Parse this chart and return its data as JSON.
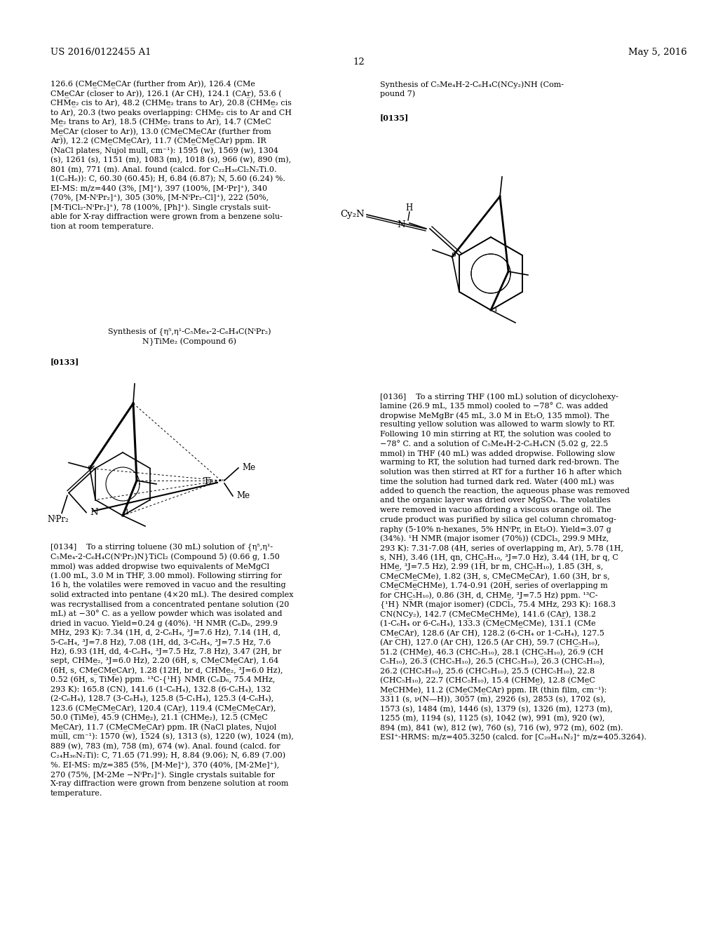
{
  "background_color": "#ffffff",
  "header_left": "US 2016/0122455 A1",
  "header_right": "May 5, 2016",
  "page_number": "12",
  "left_col_text": [
    "126.6 (CMe̲CMe̲CAr (further from Ar)), 126.4 (CMe",
    "CMe̲CAr (closer to Ar)), 126.1 (Ar CH), 124.1 (CAr̲), 53.6 (",
    "CHMe̲₂ cis to Ar), 48.2 (CHMe̲₂ trans to Ar), 20.8 (CHMe̲₂ cis",
    "to Ar), 20.3 (two peaks overlapping: CHMe̲₂ cis to Ar and CH",
    "Me̲₂ trans to Ar), 18.5 (CHMe̲₂ trans to Ar), 14.7 (CMeC",
    "Me̲CAr (closer to Ar)), 13.0 (CMe̲CMe̲CAr (further from",
    "Ar)), 12.2 (CMe̲CMe̲CAr), 11.7 (CMe̲CMe̲CAr) ppm. IR",
    "(NaCl plates, Nujol mull, cm⁻¹): 1595 (w), 1569 (w), 1304",
    "(s), 1261 (s), 1151 (m), 1083 (m), 1018 (s), 966 (w), 890 (m),",
    "801 (m), 771 (m). Anal. found (calcd. for C₂₂H₃₀Cl₂N₂Ti.0.",
    "1(C₆H₆)): C, 60.30 (60.45); H, 6.84 (6.87); N, 5.60 (6.24) %.",
    "EI-MS: m/z=440 (3%, [M]⁺), 397 (100%, [M-ⁱPr]⁺), 340",
    "(70%, [M-NⁱPr₂]⁺), 305 (30%, [M-NⁱPr₂-Cl]⁺), 222 (50%,",
    "[M-TiCl₂-NⁱPr₂]⁺), 78 (100%, [Ph]⁺). Single crystals suit-",
    "able for X-ray diffraction were grown from a benzene solu-",
    "tion at room temperature."
  ],
  "compound7_title_line1": "Synthesis of C₅Me₄H-2-C₆H₄C(NCy₂)NH (Com-",
  "compound7_title_line2": "pound 7)",
  "paragraph_135": "[0135]",
  "compound6_title_line1": "Synthesis of {η⁵,η¹-C₅Me₄-2-C₆H₄C(NⁱPr₂)",
  "compound6_title_line2": "N}TiMe₂ (Compound 6)",
  "paragraph_133": "[0133]",
  "left_col_text2": [
    "[0134]    To a stirring toluene (30 mL) solution of {η⁵,η¹-",
    "C₅Me₄-2-C₆H₄C(NⁱPr₂)N}TiCl₂ (Compound 5) (0.66 g, 1.50",
    "mmol) was added dropwise two equivalents of MeMgCl",
    "(1.00 mL, 3.0 M in THF, 3.00 mmol). Following stirring for",
    "16 h, the volatiles were removed in vacuo and the resulting",
    "solid extracted into pentane (4×20 mL). The desired complex",
    "was recrystallised from a concentrated pentane solution (20",
    "mL) at −30° C. as a yellow powder which was isolated and",
    "dried in vacuo. Yield=0.24 g (40%). ¹H NMR (C₆D₆, 299.9",
    "MHz, 293 K): 7.34 (1H, d, 2-C₆H₄, ³J=7.6 Hz), 7.14 (1H, d,",
    "5-C₆H₄, ³J=7.8 Hz), 7.08 (1H, dd, 3-C₆H₄, ³J=7.5 Hz, 7.6",
    "Hz), 6.93 (1H, dd, 4-C₆H₄, ³J=7.5 Hz, 7.8 Hz), 3.47 (2H, br",
    "sept, CHMe̲₂, ³J=6.0 Hz), 2.20 (6H, s, CMe̲CMe̲CAr), 1.64",
    "(6H, s, CMe̲CMe̲CAr), 1.28 (12H, br d, CHMe̲₂, ³J=6.0 Hz),",
    "0.52 (6H, s, TiMe) ppm. ¹³C-{¹H} NMR (C₆D₆, 75.4 MHz,",
    "293 K): 165.8 (CN), 141.6 (1-C₆H₄), 132.8 (6-C₆H₄), 132",
    "(2-C₆H₄), 128.7 (3-C₆H₄), 125.8 (5-C₁H₄), 125.3 (4-C₆H₄),",
    "123.6 (CMe̲CMe̲CAr), 120.4 (CAr̲), 119.4 (CMe̲CMe̲CAr),",
    "50.0 (TiMe), 45.9 (CHMe̲₂), 21.1 (CHMe̲₂), 12.5 (CMe̲C",
    "Me̲CAr), 11.7 (CMe̲CMe̲CAr) ppm. IR (NaCl plates, Nujol",
    "mull, cm⁻¹): 1570 (w), 1524 (s), 1313 (s), 1220 (w), 1024 (m),",
    "889 (w), 783 (m), 758 (m), 674 (w). Anal. found (calcd. for",
    "C₂₄H₃₆N₂Ti): C, 71.65 (71.99); H, 8.84 (9.06); N, 6.89 (7.00)",
    "%. EI-MS: m/z=385 (5%, [M-Me]⁺), 370 (40%, [M-2Me]⁺),",
    "270 (75%, [M-2Me −NⁱPr₂]⁺). Single crystals suitable for",
    "X-ray diffraction were grown from benzene solution at room",
    "temperature."
  ],
  "right_col_text2": [
    "[0136]    To a stirring THF (100 mL) solution of dicyclohexy-",
    "lamine (26.9 mL, 135 mmol) cooled to −78° C. was added",
    "dropwise MeMgBr (45 mL, 3.0 M in Et₂O, 135 mmol). The",
    "resulting yellow solution was allowed to warm slowly to RT.",
    "Following 10 min stirring at RT, the solution was cooled to",
    "−78° C. and a solution of C₅Me₄H-2-C₆H₄CN (5.02 g, 22.5",
    "mmol) in THF (40 mL) was added dropwise. Following slow",
    "warming to RT, the solution had turned dark red-brown. The",
    "solution was then stirred at RT for a further 16 h after which",
    "time the solution had turned dark red. Water (400 mL) was",
    "added to quench the reaction, the aqueous phase was removed",
    "and the organic layer was dried over MgSO₄. The volatiles",
    "were removed in vacuo affording a viscous orange oil. The",
    "crude product was purified by silica gel column chromatog-",
    "raphy (5-10% n-hexanes, 5% HNⁱPr, in Et₂O). Yield=3.07 g",
    "(34%). ¹H NMR (major isomer (70%)) (CDCl₃, 299.9 MHz,",
    "293 K): 7.31-7.08 (4H, series of overlapping m, Ar), 5.78 (1H,",
    "s, NH), 3.46 (1H, qn, CHC̲₅H₁₀, ³J=7.0 Hz), 3.44 (1H, br q, C",
    "HMe̲, ³J=7.5 Hz), 2.99 (1H, br m, CHC̲₅H₁₀), 1.85 (3H, s,",
    "CMe̲CMe̲CMe), 1.82 (3H, s, CMe̲CMe̲CAr), 1.60 (3H, br s,",
    "CMe̲CMe̲CHMe), 1.74-0.91 (20H, series of overlapping m",
    "for CHC̲₅H₁₀), 0.86 (3H, d, CHMe̲, ³J=7.5 Hz) ppm. ¹³C-",
    "{¹H} NMR (major isomer) (CDCl₃, 75.4 MHz, 293 K): 168.3",
    "CN(NCy₂), 142.7 (CMe̲CMe̲CHMe), 141.6 (CAr̲), 138.2",
    "(1-C₆H₄ or 6-C₆H₄), 133.3 (CMe̲CMe̲CMe), 131.1 (CMe",
    "CMe̲CAr), 128.6 (Ar CH), 128.2 (6-CH₄ or 1-C₆H₄), 127.5",
    "(Ar CH), 127.0 (Ar CH), 126.5 (Ar CH), 59.7 (CHC̲₅H₁₀),",
    "51.2 (CHMe̲), 46.3 (CHC₅H₁₀), 28.1 (CHC̲₅H₁₀), 26.9 (CH",
    "C₅H₁₀), 26.3 (CHC₅H₁₀), 26.5 (CHC₅H₁₀), 26.3 (CHC₅H₁₀),",
    "26.2 (CHC₅H₁₀), 25.6 (CHC₅H₁₀), 25.5 (CHC₅H₁₀), 22.8",
    "(CHC₅H₁₀), 22.7 (CHC₅H₁₀), 15.4 (CHMe̲), 12.8 (CMe̲C",
    "Me̲CHMe), 11.2 (CMe̲CMe̲CAr) ppm. IR (thin film, cm⁻¹):",
    "3311 (s, ν(N—H)), 3057 (m), 2926 (s), 2853 (s), 1702 (s),",
    "1573 (s), 1484 (m), 1446 (s), 1379 (s), 1326 (m), 1273 (m),",
    "1255 (m), 1194 (s), 1125 (s), 1042 (w), 991 (m), 920 (w),",
    "894 (m), 841 (w), 812 (w), 760 (s), 716 (w), 972 (m), 602 (m).",
    "ESI⁺-HRMS: m/z=405.3250 (calcd. for [C₂₉H₄₁N₂]⁺ m/z=405.3264)."
  ]
}
